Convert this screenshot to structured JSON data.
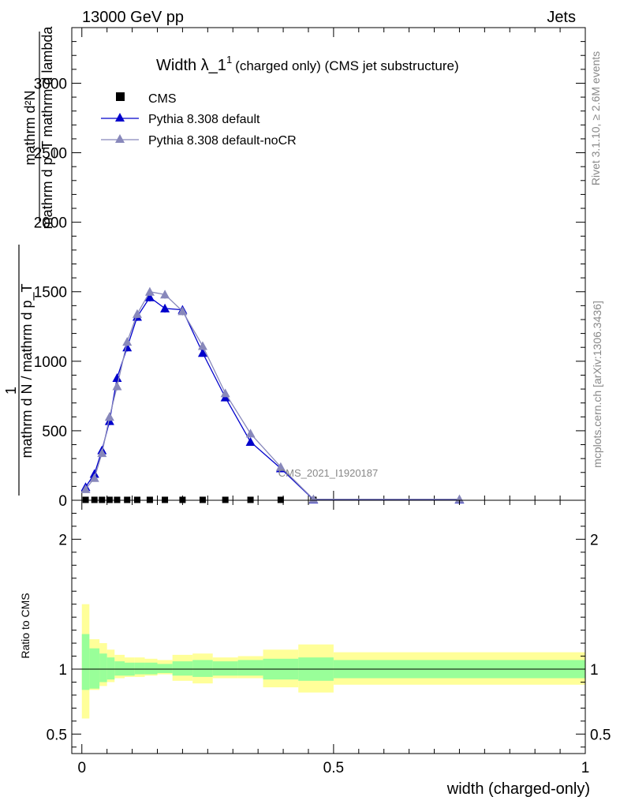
{
  "header": {
    "left": "13000 GeV pp",
    "right": "Jets"
  },
  "side_text": {
    "rivet": "Rivet 3.1.10, ≥ 2.6M events",
    "mcplots": "mcplots.cern.ch [arXiv:1306.3436]"
  },
  "watermark": "CMS_2021_I1920187",
  "chart_data": [
    {
      "type": "line",
      "title_main": "Width λ_1",
      "title_sup": "1",
      "title_rest": "(charged only) (CMS jet substructure)",
      "ylabel_top": "mathrm d²N",
      "ylabel_top_den": "mathrm d p_T mathrm d lambda",
      "ylabel_bottom_num": "1",
      "ylabel_bottom_den": "mathrm d N / mathrm d p_T",
      "ylim": [
        0,
        3400
      ],
      "yticks": [
        0,
        500,
        1000,
        1500,
        2000,
        2500,
        3000
      ],
      "ytick_labels": [
        "0",
        "500",
        "1000",
        "1500",
        "2000",
        "2500",
        "3000"
      ],
      "xlim": [
        -0.02,
        1.0
      ],
      "legend": {
        "placement": "top-left",
        "entries": [
          "CMS",
          "Pythia 8.308 default",
          "Pythia 8.308 default-noCR"
        ]
      },
      "series": [
        {
          "name": "CMS",
          "color": "#000000",
          "marker": "square",
          "x": [
            0.0075,
            0.025,
            0.04,
            0.055,
            0.07,
            0.09,
            0.11,
            0.135,
            0.165,
            0.2,
            0.24,
            0.285,
            0.335,
            0.395,
            0.46
          ],
          "y": [
            3,
            3,
            3,
            3,
            3,
            3,
            3,
            3,
            3,
            3,
            3,
            3,
            3,
            3,
            3
          ]
        },
        {
          "name": "Pythia 8.308 default",
          "color": "#0000cc",
          "marker": "triangle",
          "x": [
            0.0075,
            0.025,
            0.04,
            0.055,
            0.07,
            0.09,
            0.11,
            0.135,
            0.165,
            0.2,
            0.24,
            0.285,
            0.335,
            0.395,
            0.46,
            0.75
          ],
          "y": [
            95,
            190,
            360,
            570,
            880,
            1100,
            1320,
            1460,
            1380,
            1370,
            1060,
            740,
            420,
            230,
            5,
            5
          ],
          "err": [
            15,
            20,
            25,
            30,
            30,
            30,
            30,
            30,
            30,
            30,
            25,
            20,
            15,
            10,
            3,
            3
          ]
        },
        {
          "name": "Pythia 8.308 default-noCR",
          "color": "#8888bb",
          "marker": "triangle",
          "x": [
            0.0075,
            0.025,
            0.04,
            0.055,
            0.07,
            0.09,
            0.11,
            0.135,
            0.165,
            0.2,
            0.24,
            0.285,
            0.335,
            0.395,
            0.46,
            0.75
          ],
          "y": [
            80,
            160,
            340,
            600,
            820,
            1140,
            1340,
            1500,
            1480,
            1360,
            1110,
            770,
            480,
            240,
            8,
            8
          ],
          "err": [
            15,
            20,
            25,
            30,
            30,
            30,
            30,
            30,
            30,
            30,
            25,
            20,
            15,
            10,
            3,
            3
          ]
        }
      ]
    },
    {
      "type": "area",
      "ylabel": "Ratio to CMS",
      "xlabel": "width (charged-only)",
      "ylim": [
        0.35,
        2.3
      ],
      "yticks": [
        0.5,
        1,
        2
      ],
      "ytick_labels": [
        "0.5",
        "1",
        "2"
      ],
      "xlim": [
        -0.02,
        1.0
      ],
      "xticks": [
        0,
        0.5,
        1
      ],
      "xtick_labels": [
        "0",
        "0.5",
        "1"
      ],
      "bins": [
        0,
        0.015,
        0.035,
        0.05,
        0.065,
        0.085,
        0.105,
        0.125,
        0.15,
        0.18,
        0.22,
        0.26,
        0.31,
        0.36,
        0.43,
        0.5,
        1.0
      ],
      "band_inner": {
        "color": "#99ff99",
        "lo": [
          0.84,
          0.85,
          0.9,
          0.92,
          0.95,
          0.95,
          0.96,
          0.96,
          0.97,
          0.95,
          0.94,
          0.95,
          0.95,
          0.92,
          0.91,
          0.93
        ],
        "hi": [
          1.27,
          1.16,
          1.12,
          1.09,
          1.06,
          1.05,
          1.05,
          1.05,
          1.04,
          1.06,
          1.07,
          1.06,
          1.07,
          1.08,
          1.09,
          1.07
        ]
      },
      "band_outer": {
        "color": "#ffff99",
        "lo": [
          0.62,
          0.84,
          0.87,
          0.9,
          0.93,
          0.94,
          0.94,
          0.95,
          0.96,
          0.91,
          0.89,
          0.93,
          0.93,
          0.86,
          0.82,
          0.88
        ],
        "hi": [
          1.5,
          1.23,
          1.2,
          1.15,
          1.11,
          1.09,
          1.09,
          1.08,
          1.07,
          1.11,
          1.12,
          1.09,
          1.1,
          1.15,
          1.19,
          1.13
        ]
      },
      "reference_line": 1
    }
  ]
}
